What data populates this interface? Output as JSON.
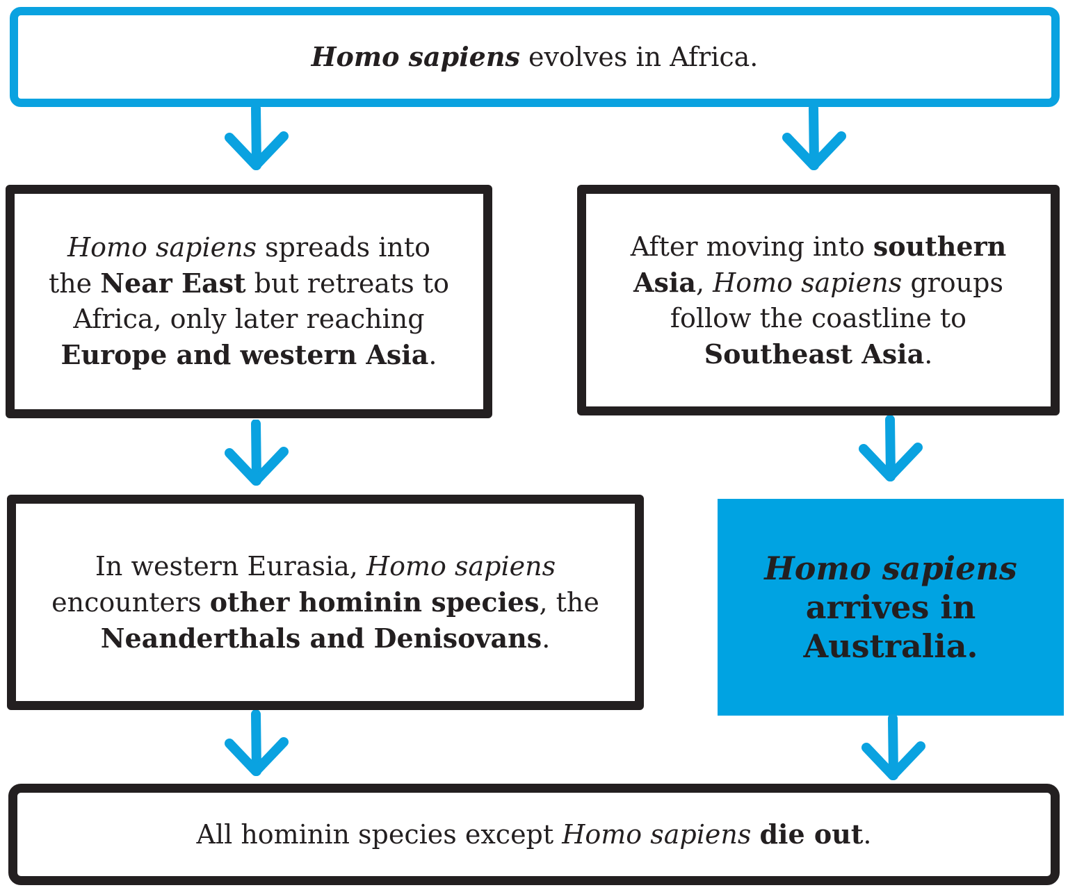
{
  "colors": {
    "blue": "#0aa2e0",
    "fill_blue": "#00a3e2",
    "ink": "#231f20"
  },
  "nodes": {
    "top": {
      "em1": "Homo sapiens",
      "t1": " evolves in Africa."
    },
    "left1": {
      "em1": "Homo sapiens",
      "t1": " spreads into the ",
      "b1": "Near East",
      "t2": " but retreats to Africa, only later reaching ",
      "b2": "Europe and western Asia",
      "t3": "."
    },
    "right1": {
      "t1": "After moving into ",
      "b1": "southern Asia",
      "t2": ", ",
      "em1": "Homo sapiens",
      "t3": " groups follow the coastline to ",
      "b2": "Southeast Asia",
      "t4": "."
    },
    "left2": {
      "t1": "In western Eurasia, ",
      "em1": "Homo sapiens",
      "t2": " encounters ",
      "b1": "other hominin species",
      "t3": ", the ",
      "b2": "Neanderthals and Denisovans",
      "t4": "."
    },
    "right2": {
      "line1": "Homo sapiens",
      "line2": "arrives in",
      "line3": "Australia."
    },
    "bottom": {
      "t1": "All hominin species except ",
      "em1": "Homo sapiens",
      "t2": " ",
      "b1": "die out",
      "t3": "."
    }
  }
}
